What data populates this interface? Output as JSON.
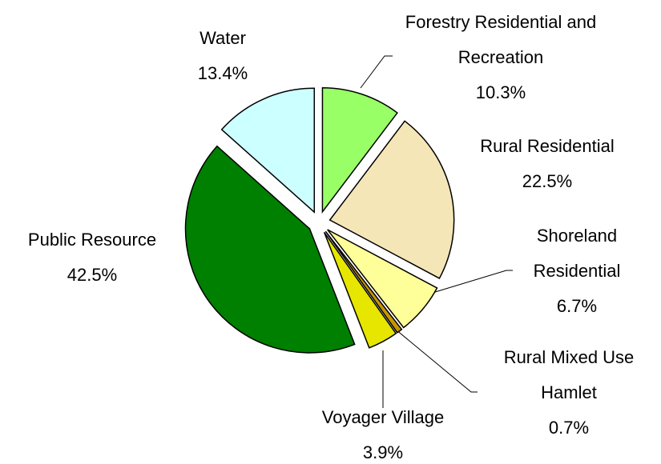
{
  "chart_data": {
    "type": "pie",
    "categories": [
      "Forestry Residential and Recreation",
      "Rural Residential",
      "Shoreland Residential",
      "Rural Mixed Use Hamlet",
      "Voyager Village",
      "Public Resource",
      "Water"
    ],
    "values": [
      10.3,
      22.5,
      6.7,
      0.7,
      3.9,
      42.5,
      13.4
    ],
    "value_labels": [
      "10.3%",
      "22.5%",
      "6.7%",
      "0.7%",
      "3.9%",
      "42.5%",
      "13.4%"
    ],
    "colors": [
      "#99ff66",
      "#f5e6b8",
      "#ffff99",
      "#c89600",
      "#e6e600",
      "#008000",
      "#ccffff"
    ]
  }
}
